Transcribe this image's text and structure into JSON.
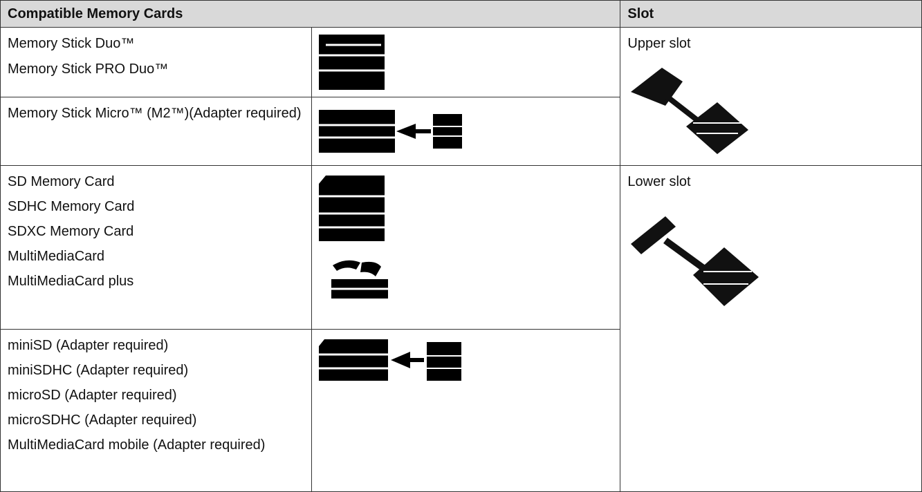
{
  "table": {
    "header": {
      "cards": "Compatible Memory Cards",
      "slot": "Slot"
    },
    "groups": [
      {
        "slot": "Upper slot",
        "rows": [
          [
            "Memory Stick Duo™",
            "Memory Stick PRO Duo™"
          ],
          [
            "Memory Stick Micro™ (M2™)(Adapter required)"
          ]
        ]
      },
      {
        "slot": "Lower slot",
        "rows": [
          [
            "SD Memory Card",
            "SDHC Memory Card",
            "SDXC Memory Card",
            "MultiMediaCard",
            "MultiMediaCard plus"
          ],
          [
            "miniSD (Adapter required)",
            "miniSDHC (Adapter required)",
            "microSD (Adapter required)",
            "microSDHC (Adapter required)",
            "MultiMediaCard mobile (Adapter required)"
          ]
        ]
      }
    ]
  }
}
